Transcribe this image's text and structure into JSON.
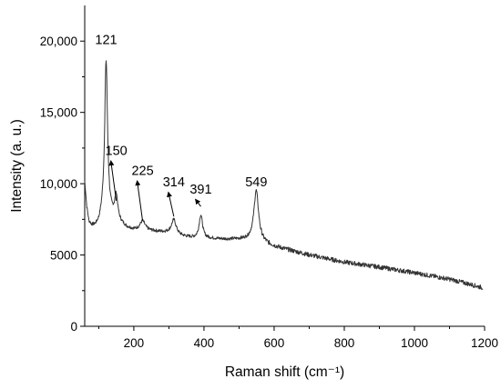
{
  "chart_data": {
    "type": "line",
    "xlabel": "Raman shift (cm⁻¹)",
    "ylabel": "Intensity (a. u.)",
    "xlim": [
      60,
      1200
    ],
    "ylim": [
      0,
      22500
    ],
    "x_ticks": [
      {
        "value": 200,
        "label": "200"
      },
      {
        "value": 400,
        "label": "400"
      },
      {
        "value": 600,
        "label": "600"
      },
      {
        "value": 800,
        "label": "800"
      },
      {
        "value": 1000,
        "label": "1000"
      },
      {
        "value": 1200,
        "label": "1200"
      }
    ],
    "y_ticks": [
      {
        "value": 0,
        "label": "0"
      },
      {
        "value": 5000,
        "label": "5000"
      },
      {
        "value": 10000,
        "label": "10,000"
      },
      {
        "value": 15000,
        "label": "15,000"
      },
      {
        "value": 20000,
        "label": "20,000"
      }
    ],
    "grid": false,
    "line_color": "#333333",
    "baseline": [
      [
        60,
        10100
      ],
      [
        66,
        8300
      ],
      [
        72,
        7300
      ],
      [
        80,
        7000
      ],
      [
        90,
        6950
      ],
      [
        100,
        7100
      ],
      [
        110,
        7600
      ],
      [
        140,
        7600
      ],
      [
        180,
        6900
      ],
      [
        200,
        6750
      ],
      [
        260,
        6650
      ],
      [
        300,
        6550
      ],
      [
        340,
        6300
      ],
      [
        380,
        6150
      ],
      [
        420,
        6150
      ],
      [
        460,
        6100
      ],
      [
        500,
        6100
      ],
      [
        540,
        6050
      ],
      [
        560,
        5900
      ],
      [
        580,
        5750
      ],
      [
        600,
        5600
      ],
      [
        700,
        5000
      ],
      [
        800,
        4500
      ],
      [
        900,
        4150
      ],
      [
        1000,
        3750
      ],
      [
        1100,
        3300
      ],
      [
        1150,
        3000
      ],
      [
        1195,
        2700
      ]
    ],
    "peaks": [
      {
        "x": 121,
        "height": 11000,
        "width": 5
      },
      {
        "x": 150,
        "height": 1650,
        "width": 5
      },
      {
        "x": 225,
        "height": 650,
        "width": 9
      },
      {
        "x": 314,
        "height": 1000,
        "width": 8
      },
      {
        "x": 391,
        "height": 1650,
        "width": 6
      },
      {
        "x": 549,
        "height": 3550,
        "width": 8
      }
    ],
    "annotations": [
      {
        "text": "121",
        "x": 121,
        "y": 19800,
        "arrow": false
      },
      {
        "text": "150",
        "x": 150,
        "y": 12000,
        "arrow": true,
        "arrow_to": [
          150,
          8800
        ]
      },
      {
        "text": "225",
        "x": 225,
        "y": 10600,
        "arrow": true,
        "arrow_to": [
          225,
          7400
        ]
      },
      {
        "text": "314",
        "x": 314,
        "y": 9800,
        "arrow": true,
        "arrow_to": [
          314,
          7700
        ]
      },
      {
        "text": "391",
        "x": 391,
        "y": 9300,
        "arrow": true,
        "arrow_to": [
          391,
          8400
        ]
      },
      {
        "text": "549",
        "x": 549,
        "y": 9800,
        "arrow": false
      }
    ]
  }
}
